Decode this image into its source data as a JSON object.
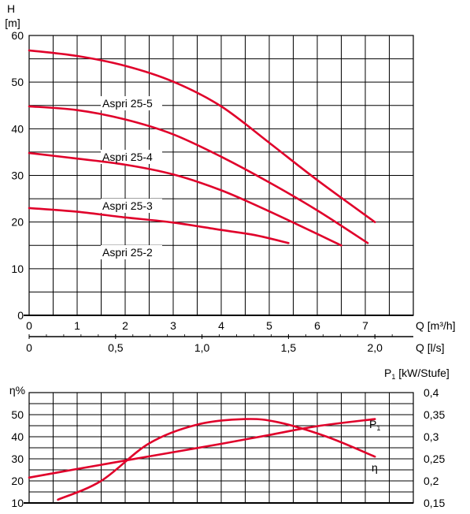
{
  "chart_data": [
    {
      "type": "line",
      "title": "",
      "ylabel": "H",
      "yunit": "[m]",
      "xlabel": "Q [m³/h]",
      "x2label": "Q [l/s]",
      "xlim": [
        0,
        8
      ],
      "ylim": [
        0,
        60
      ],
      "x_ticks": [
        "0",
        "1",
        "2",
        "3",
        "4",
        "5",
        "6",
        "7"
      ],
      "x2_ticks": [
        "0",
        "0,5",
        "1,0",
        "1,5",
        "2,0"
      ],
      "x2_values": [
        0,
        0.5,
        1.0,
        1.5,
        2.0
      ],
      "y_ticks": [
        "0",
        "10",
        "20",
        "30",
        "40",
        "50",
        "60"
      ],
      "grid": true,
      "curve_color": "#e0002a",
      "series": [
        {
          "name": "Aspri 25-5",
          "x": [
            0,
            1,
            2,
            3,
            4,
            5,
            6,
            7.2
          ],
          "y": [
            56.8,
            55.6,
            53.5,
            50.1,
            44.8,
            37.0,
            29.0,
            20.0
          ]
        },
        {
          "name": "Aspri 25-4",
          "x": [
            0,
            1,
            2,
            3,
            4,
            5,
            6,
            7.05
          ],
          "y": [
            44.8,
            44.0,
            42.0,
            38.8,
            34.0,
            28.5,
            22.5,
            15.5
          ]
        },
        {
          "name": "Aspri 25-3",
          "x": [
            0,
            1,
            2,
            3,
            4,
            5,
            6.5
          ],
          "y": [
            34.8,
            33.6,
            32.3,
            30.2,
            26.8,
            22.3,
            15.0
          ]
        },
        {
          "name": "Aspri 25-2",
          "x": [
            0,
            1,
            2,
            3,
            4,
            4.7,
            5.4
          ],
          "y": [
            23.0,
            22.2,
            21.0,
            19.9,
            18.3,
            17.2,
            15.5
          ]
        }
      ]
    },
    {
      "type": "line",
      "title": "",
      "ylabel": "η%",
      "y2label": "P1 [kW/Stufe]",
      "ylim": [
        10,
        60
      ],
      "y2lim": [
        0.15,
        0.4
      ],
      "y_ticks": [
        "10",
        "20",
        "30",
        "40",
        "50"
      ],
      "y2_ticks": [
        "0,15",
        "0,2",
        "0,25",
        "0,3",
        "0,35",
        "0,4"
      ],
      "y2_values": [
        0.15,
        0.2,
        0.25,
        0.3,
        0.35,
        0.4
      ],
      "grid": true,
      "curve_color": "#e0002a",
      "series": [
        {
          "name": "η",
          "axis": "left",
          "x": [
            0.6,
            1.5,
            2.5,
            3.5,
            4.5,
            5.2,
            6.2,
            7.2
          ],
          "y": [
            11.5,
            20.0,
            37.0,
            45.5,
            48.0,
            46.5,
            40.0,
            31.0
          ]
        },
        {
          "name": "P1",
          "axis": "right",
          "x": [
            0,
            1,
            2,
            3,
            4,
            5,
            6,
            7.2
          ],
          "y": [
            0.2075,
            0.227,
            0.246,
            0.265,
            0.284,
            0.304,
            0.324,
            0.34
          ]
        }
      ]
    }
  ]
}
